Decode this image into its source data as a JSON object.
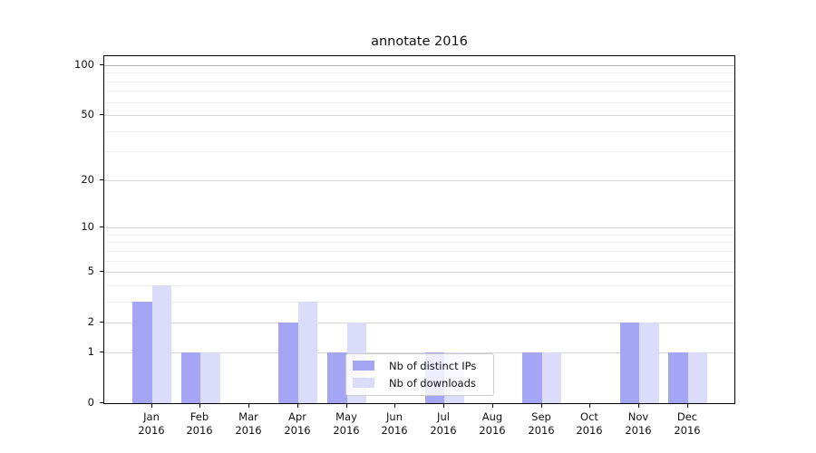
{
  "chart_data": {
    "type": "bar",
    "title": "annotate 2016",
    "x_tick_labels": [
      [
        "Jan",
        "2016"
      ],
      [
        "Feb",
        "2016"
      ],
      [
        "Mar",
        "2016"
      ],
      [
        "Apr",
        "2016"
      ],
      [
        "May",
        "2016"
      ],
      [
        "Jun",
        "2016"
      ],
      [
        "Jul",
        "2016"
      ],
      [
        "Aug",
        "2016"
      ],
      [
        "Sep",
        "2016"
      ],
      [
        "Oct",
        "2016"
      ],
      [
        "Nov",
        "2016"
      ],
      [
        "Dec",
        "2016"
      ]
    ],
    "series": [
      {
        "name": "Nb of distinct IPs",
        "color": "#a5a5f6",
        "values": [
          3,
          1,
          0,
          2,
          1,
          0,
          1,
          0,
          1,
          0,
          2,
          1
        ]
      },
      {
        "name": "Nb of downloads",
        "color": "#dbdbfa",
        "values": [
          4,
          1,
          0,
          3,
          2,
          0,
          1,
          0,
          1,
          0,
          2,
          1
        ]
      }
    ],
    "yscale": "log1p",
    "ylim": [
      0,
      112
    ],
    "y_major_ticks": [
      0,
      1,
      2,
      5,
      10,
      20,
      50,
      100
    ],
    "y_minor_ticks": [
      3,
      4,
      6,
      7,
      8,
      9,
      30,
      40,
      60,
      70,
      80,
      90
    ],
    "grid": true,
    "legend_position": "lower center",
    "colors": {
      "grid_major": "#d7d7d7",
      "grid_minor": "#eeeeee",
      "grid_top": "#b5b5b5",
      "spine": "#000000",
      "text": "#111111"
    }
  }
}
